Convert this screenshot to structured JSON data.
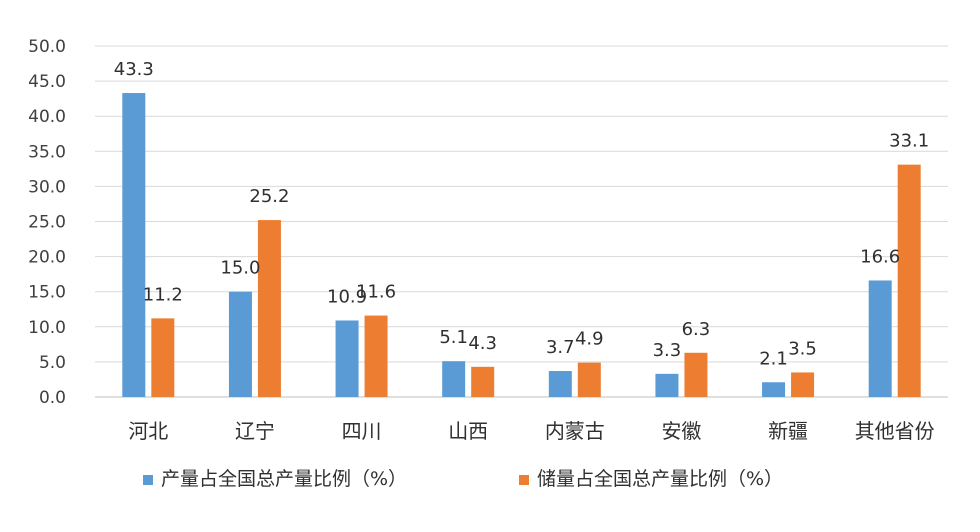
{
  "chart_data": {
    "type": "bar",
    "title": "",
    "categories": [
      "河北",
      "辽宁",
      "四川",
      "山西",
      "内蒙古",
      "安徽",
      "新疆",
      "其他省份"
    ],
    "series": [
      {
        "name": "产量占全国总产量比例（%）",
        "color": "#5B9BD5",
        "values": [
          43.3,
          15.0,
          10.9,
          5.1,
          3.7,
          3.3,
          2.1,
          16.6
        ],
        "labels": [
          "43.3",
          "15.0",
          "10.9",
          "5.1",
          "3.7",
          "3.3",
          "2.1",
          "16.6"
        ]
      },
      {
        "name": "储量占全国总产量比例（%）",
        "color": "#ED7D31",
        "values": [
          11.2,
          25.2,
          11.6,
          4.3,
          4.9,
          6.3,
          3.5,
          33.1
        ],
        "labels": [
          "11.2",
          "25.2",
          "11.6",
          "4.3",
          "4.9",
          "6.3",
          "3.5",
          "33.1"
        ]
      }
    ],
    "yticks": [
      "0.0",
      "5.0",
      "10.0",
      "15.0",
      "20.0",
      "25.0",
      "30.0",
      "35.0",
      "40.0",
      "45.0",
      "50.0"
    ],
    "ylim": [
      0,
      50
    ],
    "grid": true,
    "legend_position": "bottom",
    "xlabel": "",
    "ylabel": ""
  }
}
